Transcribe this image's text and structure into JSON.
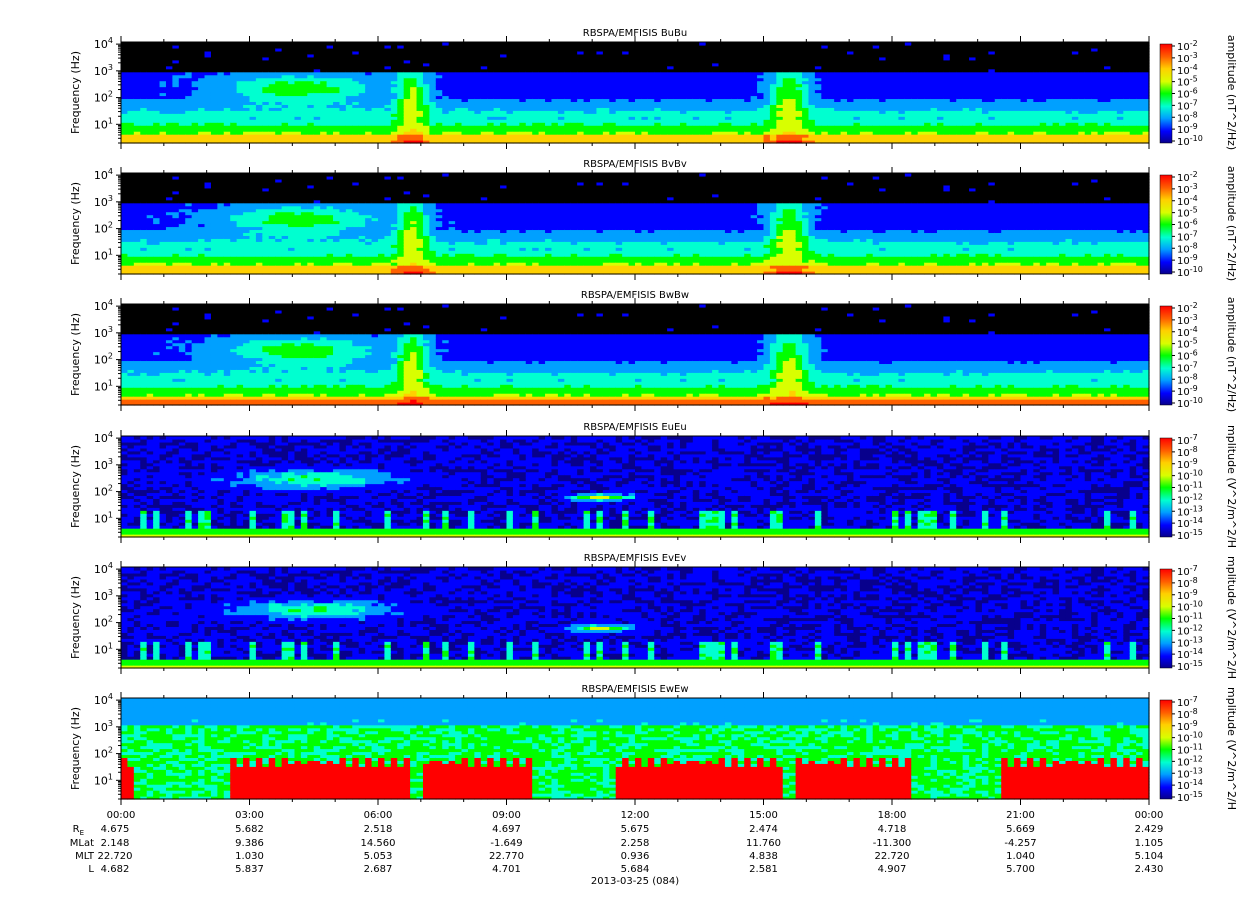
{
  "chart_data": {
    "type": "heatmap",
    "date_label": "2013-03-25 (084)",
    "x_tick_labels": [
      "00:00",
      "03:00",
      "06:00",
      "09:00",
      "12:00",
      "15:00",
      "18:00",
      "21:00",
      "00:00"
    ],
    "x_range_hours": [
      0,
      24
    ],
    "y_axis": {
      "label": "Frequency (Hz)",
      "scale": "log",
      "range_hz": [
        2,
        12000
      ],
      "tick_labels": [
        "10^1",
        "10^2",
        "10^3",
        "10^4"
      ]
    },
    "colormap": [
      "#08008c",
      "#0000ff",
      "#00a0ff",
      "#00ffd0",
      "#00ff00",
      "#d8ff00",
      "#ffd000",
      "#ff6000",
      "#ff0000"
    ],
    "panels": [
      {
        "title": "RBSPA/EMFISIS  BuBu",
        "cb_label": "amplitude (nT^2/Hz)",
        "cb_ticks": [
          "-2",
          "-3",
          "-4",
          "-5",
          "-6",
          "-7",
          "-8",
          "-9",
          "-10"
        ],
        "kind": "B"
      },
      {
        "title": "RBSPA/EMFISIS  BvBv",
        "cb_label": "amplitude (nT^2/Hz)",
        "cb_ticks": [
          "-2",
          "-3",
          "-4",
          "-5",
          "-6",
          "-7",
          "-8",
          "-9",
          "-10"
        ],
        "kind": "B"
      },
      {
        "title": "RBSPA/EMFISIS  BwBw",
        "cb_label": "amplitude (nT^2/Hz)",
        "cb_ticks": [
          "-2",
          "-3",
          "-4",
          "-5",
          "-6",
          "-7",
          "-8",
          "-9",
          "-10"
        ],
        "kind": "Bw"
      },
      {
        "title": "RBSPA/EMFISIS  EuEu",
        "cb_label": "mplitude (V^2/m^2/H",
        "cb_ticks": [
          "-7",
          "-8",
          "-9",
          "-10",
          "-11",
          "-12",
          "-13",
          "-14",
          "-15"
        ],
        "kind": "E"
      },
      {
        "title": "RBSPA/EMFISIS  EvEv",
        "cb_label": "mplitude (V^2/m^2/H",
        "cb_ticks": [
          "-7",
          "-8",
          "-9",
          "-10",
          "-11",
          "-12",
          "-13",
          "-14",
          "-15"
        ],
        "kind": "E"
      },
      {
        "title": "RBSPA/EMFISIS  EwEw",
        "cb_label": "mplitude (V^2/m^2/H",
        "cb_ticks": [
          "-7",
          "-8",
          "-9",
          "-10",
          "-11",
          "-12",
          "-13",
          "-14",
          "-15"
        ],
        "kind": "Ew"
      }
    ],
    "ephemeris": {
      "row_labels": [
        "R",
        "MLat",
        "MLT",
        "L"
      ],
      "re_subscript": "E",
      "rows": [
        [
          "4.675",
          "5.682",
          "2.518",
          "4.697",
          "5.675",
          "2.474",
          "4.718",
          "5.669",
          "2.429"
        ],
        [
          "2.148",
          "9.386",
          "14.560",
          "-1.649",
          "2.258",
          "11.760",
          "-11.300",
          "-4.257",
          "1.105"
        ],
        [
          "22.720",
          "1.030",
          "5.053",
          "22.770",
          "0.936",
          "4.838",
          "22.720",
          "1.040",
          "5.104"
        ],
        [
          "4.682",
          "5.837",
          "2.687",
          "4.701",
          "5.684",
          "2.581",
          "4.907",
          "5.700",
          "2.430"
        ]
      ]
    }
  }
}
